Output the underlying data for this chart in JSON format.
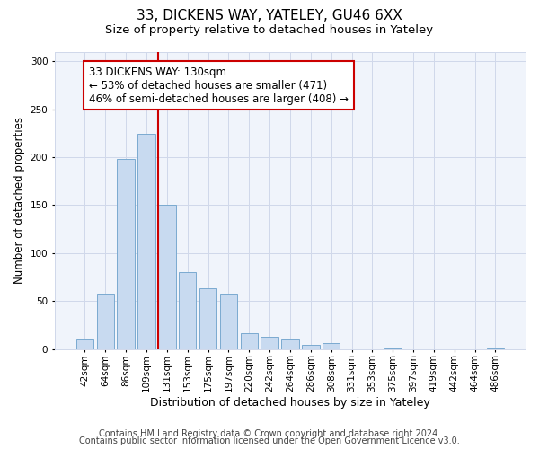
{
  "title": "33, DICKENS WAY, YATELEY, GU46 6XX",
  "subtitle": "Size of property relative to detached houses in Yateley",
  "xlabel": "Distribution of detached houses by size in Yateley",
  "ylabel": "Number of detached properties",
  "categories": [
    "42sqm",
    "64sqm",
    "86sqm",
    "109sqm",
    "131sqm",
    "153sqm",
    "175sqm",
    "197sqm",
    "220sqm",
    "242sqm",
    "264sqm",
    "286sqm",
    "308sqm",
    "331sqm",
    "353sqm",
    "375sqm",
    "397sqm",
    "419sqm",
    "442sqm",
    "464sqm",
    "486sqm"
  ],
  "values": [
    10,
    58,
    198,
    224,
    150,
    80,
    63,
    58,
    17,
    13,
    10,
    4,
    6,
    0,
    0,
    1,
    0,
    0,
    0,
    0,
    1
  ],
  "bar_color": "#c8daf0",
  "bar_edge_color": "#7aaad0",
  "vline_index": 4,
  "annotation_text_line1": "33 DICKENS WAY: 130sqm",
  "annotation_text_line2": "← 53% of detached houses are smaller (471)",
  "annotation_text_line3": "46% of semi-detached houses are larger (408) →",
  "annotation_box_facecolor": "#ffffff",
  "annotation_box_edgecolor": "#cc0000",
  "vline_color": "#cc0000",
  "footer_line1": "Contains HM Land Registry data © Crown copyright and database right 2024.",
  "footer_line2": "Contains public sector information licensed under the Open Government Licence v3.0.",
  "bg_color": "#ffffff",
  "plot_bg_color": "#f0f4fb",
  "ylim": [
    0,
    310
  ],
  "yticks": [
    0,
    50,
    100,
    150,
    200,
    250,
    300
  ],
  "title_fontsize": 11,
  "subtitle_fontsize": 9.5,
  "xlabel_fontsize": 9,
  "ylabel_fontsize": 8.5,
  "tick_fontsize": 7.5,
  "footer_fontsize": 7,
  "grid_color": "#d0d8ea",
  "annotation_fontsize": 8.5
}
